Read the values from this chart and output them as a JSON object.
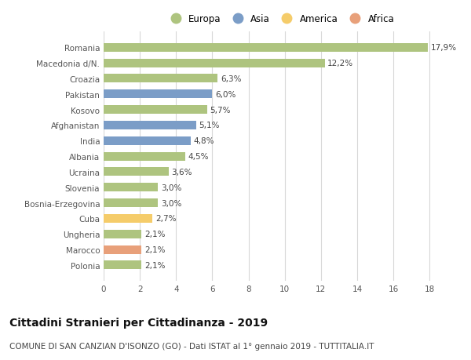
{
  "countries": [
    "Romania",
    "Macedonia d/N.",
    "Croazia",
    "Pakistan",
    "Kosovo",
    "Afghanistan",
    "India",
    "Albania",
    "Ucraina",
    "Slovenia",
    "Bosnia-Erzegovina",
    "Cuba",
    "Ungheria",
    "Marocco",
    "Polonia"
  ],
  "values": [
    17.9,
    12.2,
    6.3,
    6.0,
    5.7,
    5.1,
    4.8,
    4.5,
    3.6,
    3.0,
    3.0,
    2.7,
    2.1,
    2.1,
    2.1
  ],
  "labels": [
    "17,9%",
    "12,2%",
    "6,3%",
    "6,0%",
    "5,7%",
    "5,1%",
    "4,8%",
    "4,5%",
    "3,6%",
    "3,0%",
    "3,0%",
    "2,7%",
    "2,1%",
    "2,1%",
    "2,1%"
  ],
  "categories": [
    "Europa",
    "Europa",
    "Europa",
    "Asia",
    "Europa",
    "Asia",
    "Asia",
    "Europa",
    "Europa",
    "Europa",
    "Europa",
    "America",
    "Europa",
    "Africa",
    "Europa"
  ],
  "colors": {
    "Europa": "#aec47f",
    "Asia": "#7b9dc7",
    "America": "#f5cc6a",
    "Africa": "#e8a07a"
  },
  "legend_order": [
    "Europa",
    "Asia",
    "America",
    "Africa"
  ],
  "title": "Cittadini Stranieri per Cittadinanza - 2019",
  "subtitle": "COMUNE DI SAN CANZIAN D'ISONZO (GO) - Dati ISTAT al 1° gennaio 2019 - TUTTITALIA.IT",
  "xlim": [
    0,
    19.5
  ],
  "xticks": [
    0,
    2,
    4,
    6,
    8,
    10,
    12,
    14,
    16,
    18
  ],
  "background_color": "#ffffff",
  "grid_color": "#d8d8d8",
  "bar_height": 0.55,
  "title_fontsize": 10,
  "subtitle_fontsize": 7.5,
  "label_fontsize": 7.5,
  "tick_fontsize": 7.5,
  "legend_fontsize": 8.5
}
